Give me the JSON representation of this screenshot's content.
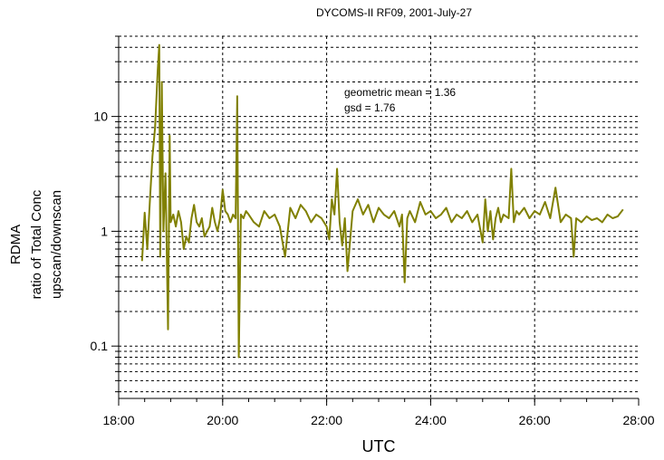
{
  "chart_data": {
    "type": "line",
    "title": "DYCOMS-II RF09, 2001-July-27",
    "xlabel": "UTC",
    "ylabel_lines": [
      "RDMA",
      "ratio of Total Conc",
      "upscan/downscan"
    ],
    "x_ticks": [
      "18:00",
      "20:00",
      "22:00",
      "24:00",
      "26:00",
      "28:00"
    ],
    "y_ticks": [
      "0.1",
      "1",
      "10"
    ],
    "xlim": [
      18,
      28
    ],
    "ylim": [
      0.035,
      50
    ],
    "y_scale": "log",
    "grid": true,
    "annotations": [
      "geometric mean = 1.36",
      "gsd = 1.76"
    ],
    "line_color": "#808000",
    "series": [
      {
        "x": [
          18.45,
          18.5,
          18.55,
          18.6,
          18.65,
          18.7,
          18.75,
          18.78,
          18.8,
          18.83,
          18.86,
          18.9,
          18.95,
          18.98,
          19.0,
          19.05,
          19.1,
          19.15,
          19.2,
          19.25,
          19.3,
          19.35,
          19.4,
          19.45,
          19.5,
          19.55,
          19.6,
          19.65,
          19.7,
          19.75,
          19.8,
          19.85,
          19.9,
          19.95,
          20.0,
          20.05,
          20.1,
          20.15,
          20.2,
          20.25,
          20.28,
          20.31,
          20.35,
          20.4,
          20.45,
          20.5,
          20.6,
          20.7,
          20.8,
          20.9,
          21.0,
          21.1,
          21.2,
          21.3,
          21.4,
          21.5,
          21.6,
          21.7,
          21.8,
          21.9,
          22.0,
          22.05,
          22.1,
          22.15,
          22.2,
          22.25,
          22.3,
          22.35,
          22.4,
          22.5,
          22.6,
          22.7,
          22.8,
          22.9,
          23.0,
          23.1,
          23.2,
          23.3,
          23.4,
          23.45,
          23.5,
          23.55,
          23.6,
          23.7,
          23.8,
          23.9,
          24.0,
          24.1,
          24.2,
          24.3,
          24.4,
          24.5,
          24.6,
          24.7,
          24.8,
          24.9,
          25.0,
          25.05,
          25.1,
          25.15,
          25.2,
          25.25,
          25.3,
          25.35,
          25.4,
          25.5,
          25.55,
          25.6,
          25.65,
          25.7,
          25.8,
          25.9,
          26.0,
          26.1,
          26.2,
          26.3,
          26.4,
          26.5,
          26.6,
          26.7,
          26.75,
          26.8,
          26.9,
          27.0,
          27.1,
          27.2,
          27.3,
          27.4,
          27.5,
          27.6,
          27.7
        ],
        "values": [
          0.55,
          1.45,
          0.7,
          1.8,
          4.5,
          8.0,
          25,
          42,
          0.6,
          20,
          1.0,
          3.2,
          0.14,
          6.8,
          1.2,
          1.4,
          1.1,
          1.5,
          1.2,
          0.7,
          0.9,
          0.8,
          1.3,
          1.7,
          1.2,
          1.1,
          1.3,
          0.9,
          1.0,
          1.1,
          1.6,
          1.2,
          1.0,
          1.3,
          2.3,
          1.5,
          1.4,
          1.2,
          1.4,
          1.3,
          15,
          0.08,
          1.4,
          1.3,
          1.5,
          1.4,
          1.2,
          1.1,
          1.5,
          1.3,
          1.4,
          1.1,
          0.6,
          1.6,
          1.3,
          1.7,
          1.5,
          1.2,
          1.4,
          1.3,
          1.1,
          0.85,
          1.9,
          1.4,
          3.5,
          1.2,
          0.75,
          1.3,
          0.45,
          1.5,
          1.9,
          1.4,
          1.7,
          1.2,
          1.6,
          1.4,
          1.3,
          1.5,
          1.1,
          1.4,
          0.36,
          1.3,
          1.5,
          1.2,
          1.8,
          1.4,
          1.5,
          1.3,
          1.4,
          1.6,
          1.2,
          1.4,
          1.3,
          1.5,
          1.2,
          1.4,
          0.8,
          1.9,
          1.0,
          1.5,
          0.85,
          1.3,
          1.6,
          1.2,
          1.4,
          1.3,
          3.5,
          1.2,
          1.5,
          1.4,
          1.6,
          1.3,
          1.5,
          1.4,
          1.8,
          1.3,
          2.4,
          1.2,
          1.4,
          1.3,
          0.6,
          1.3,
          1.2,
          1.35,
          1.25,
          1.3,
          1.2,
          1.4,
          1.3,
          1.35,
          1.55
        ]
      }
    ]
  }
}
